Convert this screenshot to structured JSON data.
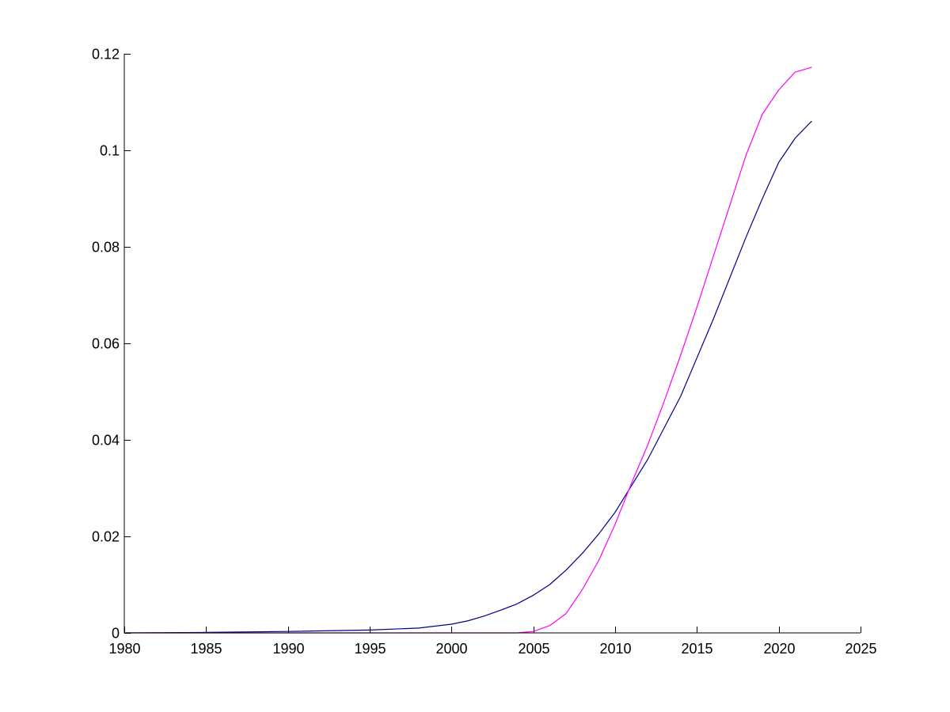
{
  "chart_data": {
    "type": "line",
    "title": "",
    "xlabel": "",
    "ylabel": "",
    "xlim": [
      1980,
      2025
    ],
    "ylim": [
      0,
      0.12
    ],
    "grid": false,
    "legend": "none",
    "x_ticks": [
      1980,
      1985,
      1990,
      1995,
      2000,
      2005,
      2010,
      2015,
      2020,
      2025
    ],
    "x_tick_labels": [
      "1980",
      "1985",
      "1990",
      "1995",
      "2000",
      "2005",
      "2010",
      "2015",
      "2020",
      "2025"
    ],
    "y_ticks": [
      0,
      0.02,
      0.04,
      0.06,
      0.08,
      0.1,
      0.12
    ],
    "y_tick_labels": [
      "0",
      "0.02",
      "0.04",
      "0.06",
      "0.08",
      "0.1",
      "0.12"
    ],
    "series": [
      {
        "color": "#00008b",
        "x": [
          1980,
          1985,
          1990,
          1995,
          1998,
          2000,
          2001,
          2002,
          2003,
          2004,
          2005,
          2006,
          2007,
          2008,
          2009,
          2010,
          2011,
          2012,
          2013,
          2014,
          2015,
          2016,
          2017,
          2018,
          2019,
          2020,
          2021,
          2022
        ],
        "values": [
          0,
          0.0001,
          0.0003,
          0.0006,
          0.001,
          0.0018,
          0.0025,
          0.0035,
          0.0047,
          0.006,
          0.0078,
          0.01,
          0.013,
          0.0165,
          0.0205,
          0.025,
          0.0305,
          0.036,
          0.0425,
          0.049,
          0.057,
          0.065,
          0.0735,
          0.082,
          0.09,
          0.0975,
          0.1025,
          0.106
        ]
      },
      {
        "color": "#ff00ff",
        "x": [
          1980,
          1985,
          1990,
          1995,
          2000,
          2004,
          2005,
          2006,
          2007,
          2008,
          2009,
          2010,
          2011,
          2012,
          2013,
          2014,
          2015,
          2016,
          2017,
          2018,
          2019,
          2020,
          2021,
          2022
        ],
        "values": [
          0,
          0,
          0,
          0,
          0,
          0,
          0.0003,
          0.0015,
          0.004,
          0.009,
          0.015,
          0.0225,
          0.031,
          0.039,
          0.048,
          0.0575,
          0.0675,
          0.078,
          0.0885,
          0.099,
          0.1075,
          0.1125,
          0.1162,
          0.1172
        ]
      }
    ]
  }
}
